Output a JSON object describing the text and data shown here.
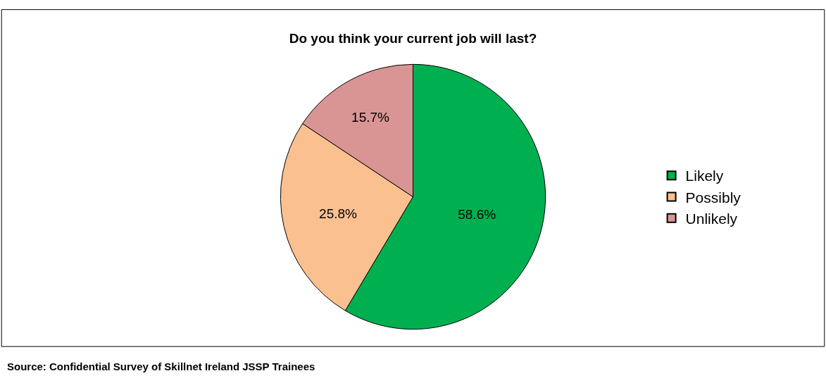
{
  "chart_data": {
    "type": "pie",
    "title": "Do you think your current job will last?",
    "categories": [
      "Likely",
      "Possibly",
      "Unlikely"
    ],
    "values": [
      58.6,
      25.8,
      15.7
    ],
    "value_labels": [
      "58.6%",
      "25.8%",
      "15.7%"
    ],
    "colors": [
      "#00b050",
      "#fac090",
      "#d99594"
    ],
    "legend": "right",
    "annotations": [
      "Source: Confidential Survey of Skillnet Ireland JSSP Trainees"
    ]
  }
}
